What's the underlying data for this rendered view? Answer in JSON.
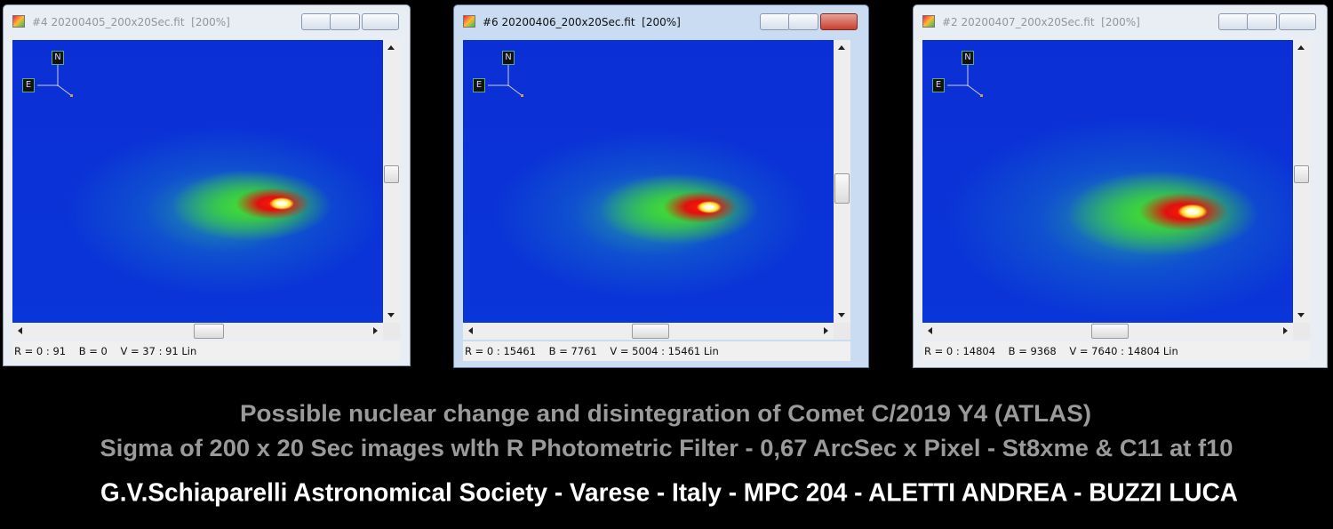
{
  "windows": [
    {
      "title": "#4 20200405_200x20Sec.fit  [200%]",
      "status": "R = 0 : 91    B = 0    V = 37 : 91 Lin",
      "compass": {
        "north": "N",
        "east": "E"
      }
    },
    {
      "title": "#6 20200406_200x20Sec.fit  [200%]",
      "status": "R = 0 : 15461    B = 7761    V = 5004 : 15461 Lin",
      "compass": {
        "north": "N",
        "east": "E"
      }
    },
    {
      "title": "#2 20200407_200x20Sec.fit  [200%]",
      "status": "R = 0 : 14804    B = 9368    V = 7640 : 14804 Lin",
      "compass": {
        "north": "N",
        "east": "E"
      }
    }
  ],
  "caption": {
    "lines": [
      "Possible nuclear change and disintegration of Comet C/2019 Y4 (ATLAS)",
      "Sigma of 200 x 20 Sec images wlth R Photometric Filter - 0,67 ArcSec x Pixel - St8xme & C11 at f10",
      "G.V.Schiaparelli Astronomical Society - Varese  - Italy - MPC 204 - ALETTI ANDREA - BUZZI LUCA"
    ]
  }
}
